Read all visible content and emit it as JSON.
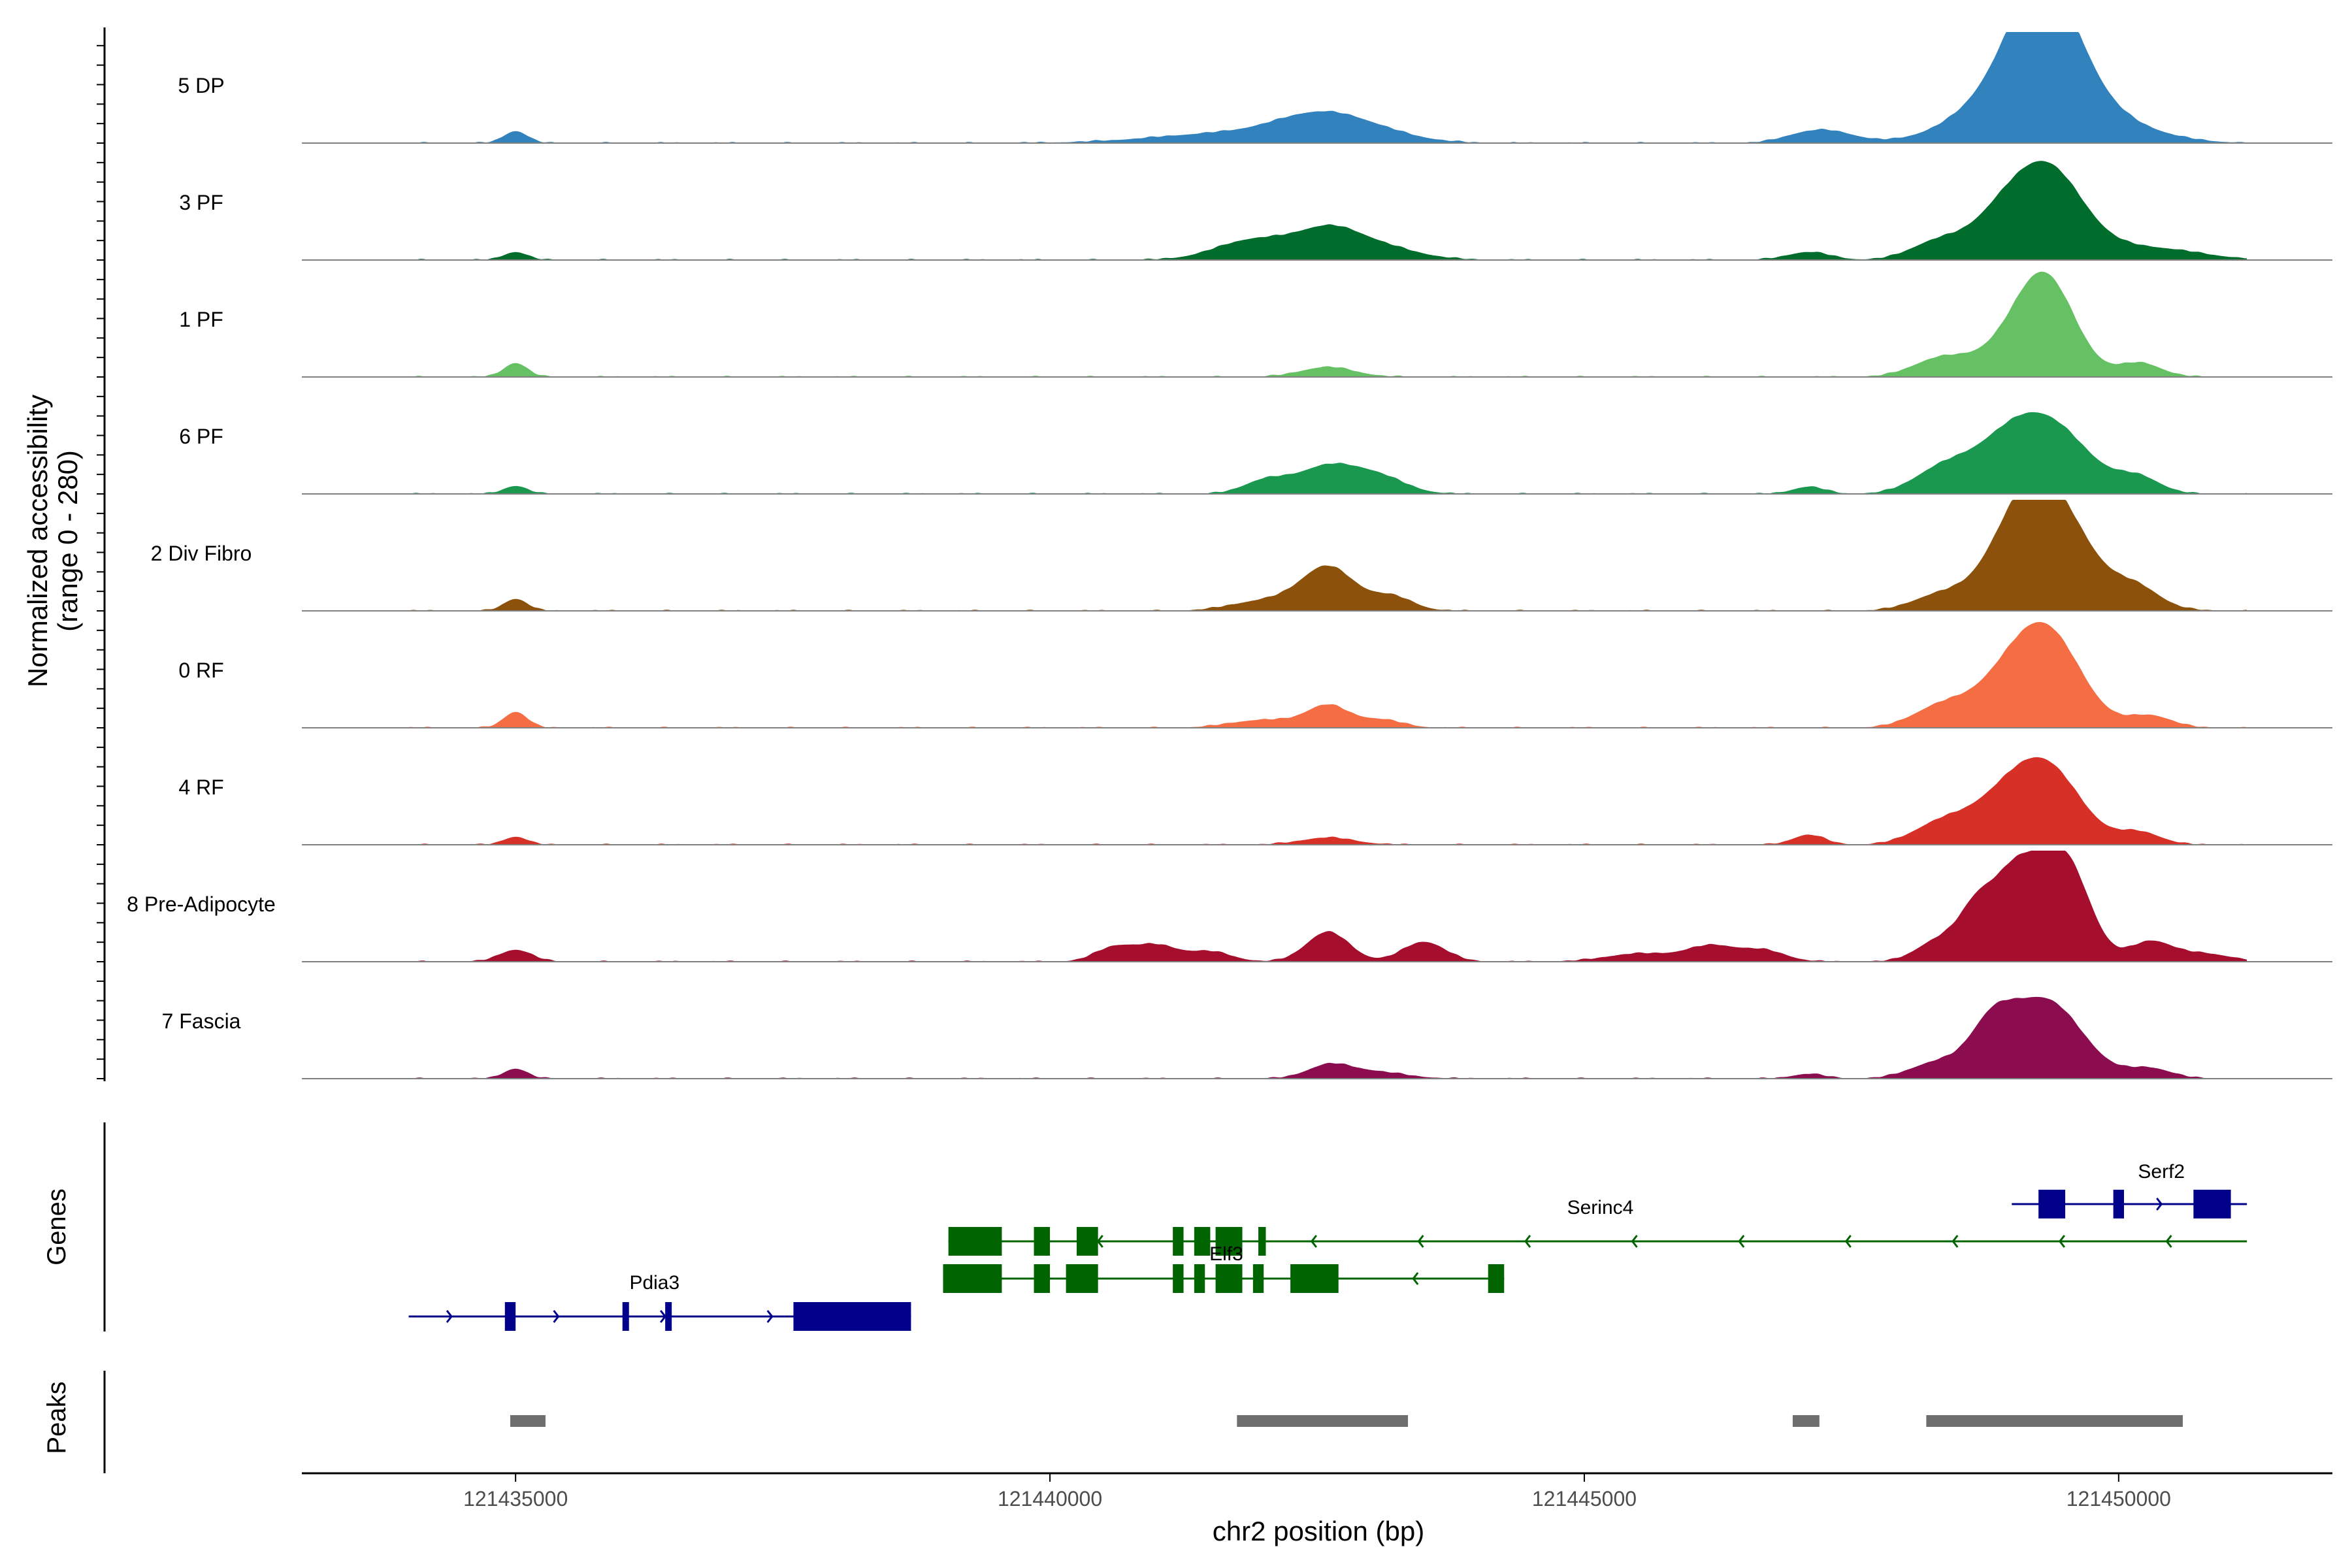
{
  "chart_data": {
    "type": "area",
    "y_axis_title_line1": "Normalized accessibility",
    "y_axis_title_line2": "(range 0 - 280)",
    "y_range": [
      0,
      280
    ],
    "xlabel": "chr2 position (bp)",
    "xlim": [
      121433000,
      121452000
    ],
    "x_ticks": [
      121435000,
      121440000,
      121445000,
      121450000
    ],
    "x_tick_labels": [
      "121435000",
      "121440000",
      "121445000",
      "121450000"
    ],
    "genes_panel_title": "Genes",
    "peaks_panel_title": "Peaks",
    "tracks": [
      {
        "name": "5 DP",
        "color": "#3182BD",
        "peaks": [
          [
            121435000,
            30,
            110
          ],
          [
            121441700,
            25,
            700
          ],
          [
            121442500,
            55,
            400
          ],
          [
            121443000,
            25,
            400
          ],
          [
            121447000,
            12,
            200
          ],
          [
            121447300,
            28,
            250
          ],
          [
            121448800,
            60,
            450
          ],
          [
            121449300,
            260,
            320
          ],
          [
            121449400,
            120,
            500
          ],
          [
            121450200,
            15,
            400
          ]
        ]
      },
      {
        "name": "3 PF",
        "color": "#006D2C",
        "peaks": [
          [
            121435000,
            20,
            110
          ],
          [
            121441900,
            50,
            350
          ],
          [
            121442600,
            70,
            300
          ],
          [
            121443100,
            30,
            350
          ],
          [
            121447100,
            20,
            200
          ],
          [
            121448300,
            45,
            250
          ],
          [
            121448800,
            50,
            250
          ],
          [
            121449300,
            240,
            350
          ],
          [
            121450300,
            30,
            450
          ]
        ]
      },
      {
        "name": "1 PF",
        "color": "#66C164",
        "peaks": [
          [
            121435000,
            35,
            110
          ],
          [
            121442600,
            25,
            250
          ],
          [
            121448300,
            40,
            250
          ],
          [
            121448800,
            40,
            300
          ],
          [
            121449300,
            255,
            280
          ],
          [
            121450200,
            35,
            200
          ]
        ]
      },
      {
        "name": "6 PF",
        "color": "#1A9850",
        "peaks": [
          [
            121435000,
            20,
            110
          ],
          [
            121442000,
            30,
            200
          ],
          [
            121442600,
            70,
            300
          ],
          [
            121443100,
            35,
            250
          ],
          [
            121447100,
            18,
            150
          ],
          [
            121448300,
            45,
            250
          ],
          [
            121448800,
            60,
            350
          ],
          [
            121449300,
            180,
            400
          ],
          [
            121450200,
            35,
            200
          ]
        ]
      },
      {
        "name": "2 Div Fibro",
        "color": "#8C510A",
        "peaks": [
          [
            121435000,
            30,
            110
          ],
          [
            121442000,
            25,
            300
          ],
          [
            121442600,
            110,
            250
          ],
          [
            121443200,
            35,
            200
          ],
          [
            121448300,
            35,
            250
          ],
          [
            121449200,
            260,
            350
          ],
          [
            121449500,
            100,
            450
          ],
          [
            121450200,
            35,
            200
          ]
        ]
      },
      {
        "name": "0 RF",
        "color": "#F46D43",
        "peaks": [
          [
            121435000,
            40,
            110
          ],
          [
            121442000,
            20,
            300
          ],
          [
            121442600,
            55,
            200
          ],
          [
            121443100,
            20,
            200
          ],
          [
            121448300,
            45,
            250
          ],
          [
            121448800,
            60,
            300
          ],
          [
            121449300,
            250,
            330
          ],
          [
            121450300,
            30,
            200
          ]
        ]
      },
      {
        "name": "4 RF",
        "color": "#D73027",
        "peaks": [
          [
            121435000,
            20,
            110
          ],
          [
            121442600,
            18,
            250
          ],
          [
            121447100,
            25,
            150
          ],
          [
            121448300,
            45,
            250
          ],
          [
            121448800,
            70,
            300
          ],
          [
            121449300,
            200,
            330
          ],
          [
            121450200,
            30,
            200
          ]
        ]
      },
      {
        "name": "8 Pre-Adipocyte",
        "color": "#A50F2D",
        "peaks": [
          [
            121435000,
            30,
            150
          ],
          [
            121440600,
            35,
            180
          ],
          [
            121441000,
            40,
            200
          ],
          [
            121441500,
            25,
            200
          ],
          [
            121442600,
            75,
            200
          ],
          [
            121443500,
            50,
            200
          ],
          [
            121445500,
            20,
            300
          ],
          [
            121446200,
            40,
            250
          ],
          [
            121446700,
            25,
            200
          ],
          [
            121448300,
            50,
            200
          ],
          [
            121448700,
            150,
            180
          ],
          [
            121449000,
            100,
            150
          ],
          [
            121449300,
            240,
            250
          ],
          [
            121449600,
            120,
            200
          ],
          [
            121450300,
            50,
            200
          ],
          [
            121450800,
            20,
            250
          ]
        ]
      },
      {
        "name": "7 Fascia",
        "color": "#8C0D4F",
        "peaks": [
          [
            121435000,
            25,
            110
          ],
          [
            121442600,
            30,
            200
          ],
          [
            121443000,
            18,
            300
          ],
          [
            121447100,
            12,
            150
          ],
          [
            121448300,
            40,
            250
          ],
          [
            121448800,
            100,
            200
          ],
          [
            121449300,
            200,
            350
          ],
          [
            121450300,
            25,
            200
          ]
        ]
      }
    ],
    "genes": [
      {
        "name": "Pdia3",
        "color": "#00008B",
        "strand": "+",
        "row": 2,
        "start": 121434000,
        "end": 121438700,
        "exons": [
          [
            121434900,
            121435000
          ],
          [
            121436000,
            121436060
          ],
          [
            121436400,
            121436460
          ],
          [
            121437600,
            121438700
          ]
        ],
        "label_x": 121436300
      },
      {
        "name": "Serinc4",
        "color": "#006400",
        "strand": "-",
        "row": 0,
        "start": 121439050,
        "end": 121451200,
        "exons": [
          [
            121439050,
            121439550
          ],
          [
            121439850,
            121440000
          ],
          [
            121440250,
            121440450
          ],
          [
            121441150,
            121441250
          ],
          [
            121441350,
            121441500
          ],
          [
            121441550,
            121441800
          ],
          [
            121441950,
            121442020
          ]
        ],
        "label_x": 121445150
      },
      {
        "name": "Elf3",
        "color": "#006400",
        "strand": "-",
        "row": 1,
        "start": 121439000,
        "end": 121444250,
        "exons": [
          [
            121439000,
            121439550
          ],
          [
            121439850,
            121440000
          ],
          [
            121440150,
            121440450
          ],
          [
            121441150,
            121441250
          ],
          [
            121441350,
            121441450
          ],
          [
            121441550,
            121441800
          ],
          [
            121441900,
            121442000
          ],
          [
            121442250,
            121442700
          ],
          [
            121444100,
            121444250
          ]
        ],
        "label_x": 121441650
      },
      {
        "name": "Serf2",
        "color": "#00008B",
        "strand": "+",
        "row": -1,
        "start": 121449000,
        "end": 121451200,
        "exons": [
          [
            121449250,
            121449500
          ],
          [
            121449950,
            121450050
          ],
          [
            121450700,
            121451050
          ]
        ],
        "label_x": 121450400
      }
    ],
    "peaks": [
      [
        121434950,
        121435280
      ],
      [
        121441750,
        121443350
      ],
      [
        121446950,
        121447200
      ],
      [
        121448200,
        121450600
      ]
    ],
    "grid": false
  }
}
